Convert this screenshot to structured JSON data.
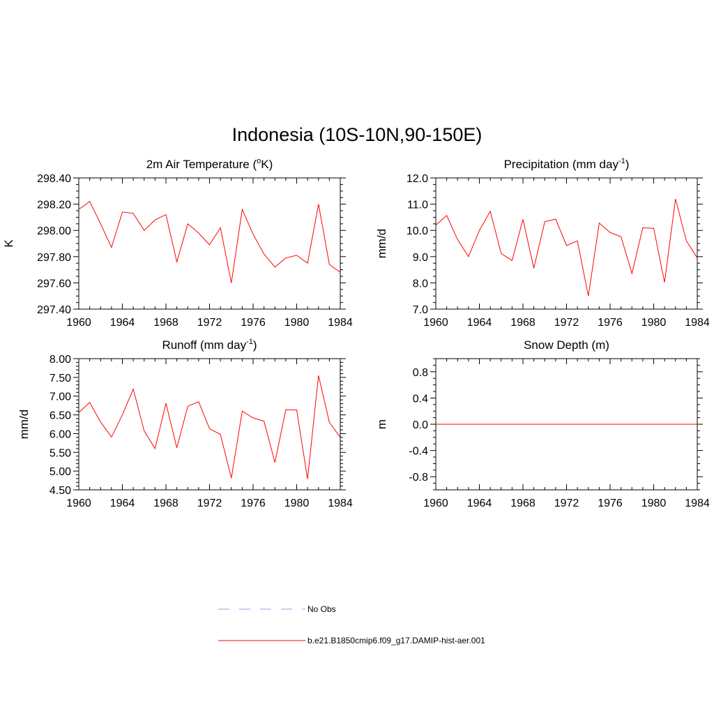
{
  "figure": {
    "title": "Indonesia (10S-10N,90-150E)"
  },
  "chart_data": [
    {
      "type": "line",
      "title": "2m Air Temperature (°K)",
      "title_parts": [
        "2m Air Temperature (",
        "o",
        "K)"
      ],
      "ylabel": "K",
      "xlim": [
        1960,
        1984
      ],
      "ylim": [
        297.4,
        298.4
      ],
      "x_ticks": [
        "1960",
        "1964",
        "1968",
        "1972",
        "1976",
        "1980",
        "1984"
      ],
      "y_ticks": [
        "297.40",
        "297.60",
        "297.80",
        "298.00",
        "298.20",
        "298.40"
      ],
      "y_tick_values": [
        297.4,
        297.6,
        297.8,
        298.0,
        298.2,
        298.4
      ],
      "y_minor_step": 0.05,
      "x": [
        1960,
        1961,
        1962,
        1963,
        1964,
        1965,
        1966,
        1967,
        1968,
        1969,
        1970,
        1971,
        1972,
        1973,
        1974,
        1975,
        1976,
        1977,
        1978,
        1979,
        1980,
        1981,
        1982,
        1983,
        1984
      ],
      "series": [
        {
          "name": "b.e21.B1850cmip6.f09_g17.DAMIP-hist-aer.001",
          "color": "#ff0000",
          "values": [
            298.16,
            298.22,
            298.05,
            297.87,
            298.14,
            298.13,
            298.0,
            298.08,
            298.12,
            297.76,
            298.05,
            297.98,
            297.89,
            298.02,
            297.6,
            298.16,
            297.97,
            297.82,
            297.72,
            297.79,
            297.81,
            297.75,
            298.2,
            297.74,
            297.68
          ]
        }
      ]
    },
    {
      "type": "line",
      "title": "Precipitation (mm day-1)",
      "title_parts": [
        "Precipitation (mm day",
        "-1",
        ")"
      ],
      "ylabel": "mm/d",
      "xlim": [
        1960,
        1984
      ],
      "ylim": [
        7.0,
        12.0
      ],
      "x_ticks": [
        "1960",
        "1964",
        "1968",
        "1972",
        "1976",
        "1980",
        "1984"
      ],
      "y_ticks": [
        "7.0",
        "8.0",
        "9.0",
        "10.0",
        "11.0",
        "12.0"
      ],
      "y_tick_values": [
        7.0,
        8.0,
        9.0,
        10.0,
        11.0,
        12.0
      ],
      "y_minor_step": 0.25,
      "x": [
        1960,
        1961,
        1962,
        1963,
        1964,
        1965,
        1966,
        1967,
        1968,
        1969,
        1970,
        1971,
        1972,
        1973,
        1974,
        1975,
        1976,
        1977,
        1978,
        1979,
        1980,
        1981,
        1982,
        1983,
        1984
      ],
      "series": [
        {
          "name": "b.e21.B1850cmip6.f09_g17.DAMIP-hist-aer.001",
          "color": "#ff0000",
          "values": [
            10.2,
            10.57,
            9.65,
            9.0,
            10.0,
            10.73,
            9.12,
            8.85,
            10.42,
            8.56,
            10.33,
            10.43,
            9.42,
            9.6,
            7.5,
            10.28,
            9.92,
            9.76,
            8.36,
            10.1,
            10.08,
            8.02,
            11.2,
            9.6,
            8.95
          ]
        }
      ]
    },
    {
      "type": "line",
      "title": "Runoff (mm day-1)",
      "title_parts": [
        "Runoff (mm day",
        "-1",
        ")"
      ],
      "ylabel": "mm/d",
      "xlim": [
        1960,
        1984
      ],
      "ylim": [
        4.5,
        8.0
      ],
      "x_ticks": [
        "1960",
        "1964",
        "1968",
        "1972",
        "1976",
        "1980",
        "1984"
      ],
      "y_ticks": [
        "4.50",
        "5.00",
        "5.50",
        "6.00",
        "6.50",
        "7.00",
        "7.50",
        "8.00"
      ],
      "y_tick_values": [
        4.5,
        5.0,
        5.5,
        6.0,
        6.5,
        7.0,
        7.5,
        8.0
      ],
      "y_minor_step": 0.1,
      "x": [
        1960,
        1961,
        1962,
        1963,
        1964,
        1965,
        1966,
        1967,
        1968,
        1969,
        1970,
        1971,
        1972,
        1973,
        1974,
        1975,
        1976,
        1977,
        1978,
        1979,
        1980,
        1981,
        1982,
        1983,
        1984
      ],
      "series": [
        {
          "name": "b.e21.B1850cmip6.f09_g17.DAMIP-hist-aer.001",
          "color": "#ff0000",
          "values": [
            6.56,
            6.83,
            6.31,
            5.91,
            6.5,
            7.19,
            6.07,
            5.6,
            6.81,
            5.62,
            6.73,
            6.85,
            6.13,
            5.98,
            4.81,
            6.6,
            6.42,
            6.33,
            5.23,
            6.64,
            6.63,
            4.79,
            7.55,
            6.3,
            5.9
          ]
        }
      ]
    },
    {
      "type": "line",
      "title": "Snow Depth (m)",
      "title_parts": [
        "Snow Depth (m)",
        "",
        ""
      ],
      "ylabel": "m",
      "xlim": [
        1960,
        1984
      ],
      "ylim": [
        -1.0,
        1.0
      ],
      "x_ticks": [
        "1960",
        "1964",
        "1968",
        "1972",
        "1976",
        "1980",
        "1984"
      ],
      "y_ticks": [
        "-0.8",
        "-0.4",
        "0.0",
        "0.4",
        "0.8"
      ],
      "y_tick_values": [
        -0.8,
        -0.4,
        0.0,
        0.4,
        0.8
      ],
      "y_minor_step": 0.1,
      "x": [
        1960,
        1961,
        1962,
        1963,
        1964,
        1965,
        1966,
        1967,
        1968,
        1969,
        1970,
        1971,
        1972,
        1973,
        1974,
        1975,
        1976,
        1977,
        1978,
        1979,
        1980,
        1981,
        1982,
        1983,
        1984
      ],
      "series": [
        {
          "name": "b.e21.B1850cmip6.f09_g17.DAMIP-hist-aer.001",
          "color": "#ff0000",
          "values": [
            0,
            0,
            0,
            0,
            0,
            0,
            0,
            0,
            0,
            0,
            0,
            0,
            0,
            0,
            0,
            0,
            0,
            0,
            0,
            0,
            0,
            0,
            0,
            0,
            0
          ]
        }
      ]
    }
  ],
  "legend": {
    "items": [
      {
        "label": "No Obs",
        "color": "#9999ee",
        "style": "dashed"
      },
      {
        "label": "b.e21.B1850cmip6.f09_g17.DAMIP-hist-aer.001",
        "color": "#ff0000",
        "style": "solid"
      }
    ]
  }
}
